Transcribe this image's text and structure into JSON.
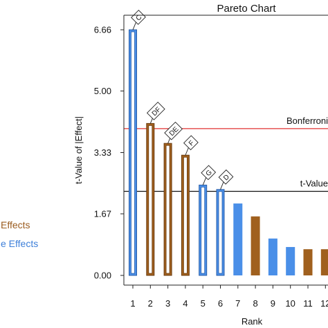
{
  "chart_data": {
    "type": "bar",
    "title": "Pareto Chart",
    "xlabel": "Rank",
    "ylabel": "t-Value of |Effect|",
    "ylim": [
      0,
      7.0
    ],
    "yticks": [
      {
        "value": 0,
        "label": "0.00"
      },
      {
        "value": 1.67,
        "label": "1.67"
      },
      {
        "value": 3.33,
        "label": "3.33"
      },
      {
        "value": 5.0,
        "label": "5.00"
      },
      {
        "value": 6.66,
        "label": "6.66"
      }
    ],
    "categories": [
      "1",
      "2",
      "3",
      "4",
      "5",
      "6",
      "7",
      "8",
      "9",
      "10",
      "11",
      "12"
    ],
    "bars": [
      {
        "rank": "1",
        "value": 6.66,
        "label": "C",
        "kind": "active",
        "group": "main"
      },
      {
        "rank": "2",
        "value": 4.12,
        "label": "DF",
        "kind": "active",
        "group": "interaction"
      },
      {
        "rank": "3",
        "value": 3.58,
        "label": "DE",
        "kind": "active",
        "group": "interaction"
      },
      {
        "rank": "4",
        "value": 3.26,
        "label": "F",
        "kind": "active",
        "group": "interaction"
      },
      {
        "rank": "5",
        "value": 2.45,
        "label": "G",
        "kind": "active",
        "group": "main"
      },
      {
        "rank": "6",
        "value": 2.33,
        "label": "D",
        "kind": "active",
        "group": "main"
      },
      {
        "rank": "7",
        "value": 1.95,
        "label": "",
        "kind": "inactive",
        "group": "main"
      },
      {
        "rank": "8",
        "value": 1.6,
        "label": "",
        "kind": "inactive",
        "group": "interaction"
      },
      {
        "rank": "9",
        "value": 1.0,
        "label": "",
        "kind": "inactive",
        "group": "main"
      },
      {
        "rank": "10",
        "value": 0.77,
        "label": "",
        "kind": "inactive",
        "group": "main"
      },
      {
        "rank": "11",
        "value": 0.71,
        "label": "",
        "kind": "inactive",
        "group": "interaction"
      },
      {
        "rank": "12",
        "value": 0.71,
        "label": "",
        "kind": "inactive",
        "group": "interaction"
      }
    ],
    "reference_lines": [
      {
        "label": "Bonferroni",
        "value": 3.98,
        "color": "#e03030"
      },
      {
        "label": "t-Value",
        "value": 2.28,
        "color": "#111111"
      }
    ],
    "legend": [
      {
        "label": "Effects",
        "color": "#9a5b1e"
      },
      {
        "label": "e Effects",
        "color": "#3d7fd9"
      }
    ],
    "colors": {
      "main": "#4a8fe8",
      "main_outline": "#2a5ea8",
      "interaction": "#a0601e",
      "interaction_outline": "#6b3c10"
    }
  }
}
